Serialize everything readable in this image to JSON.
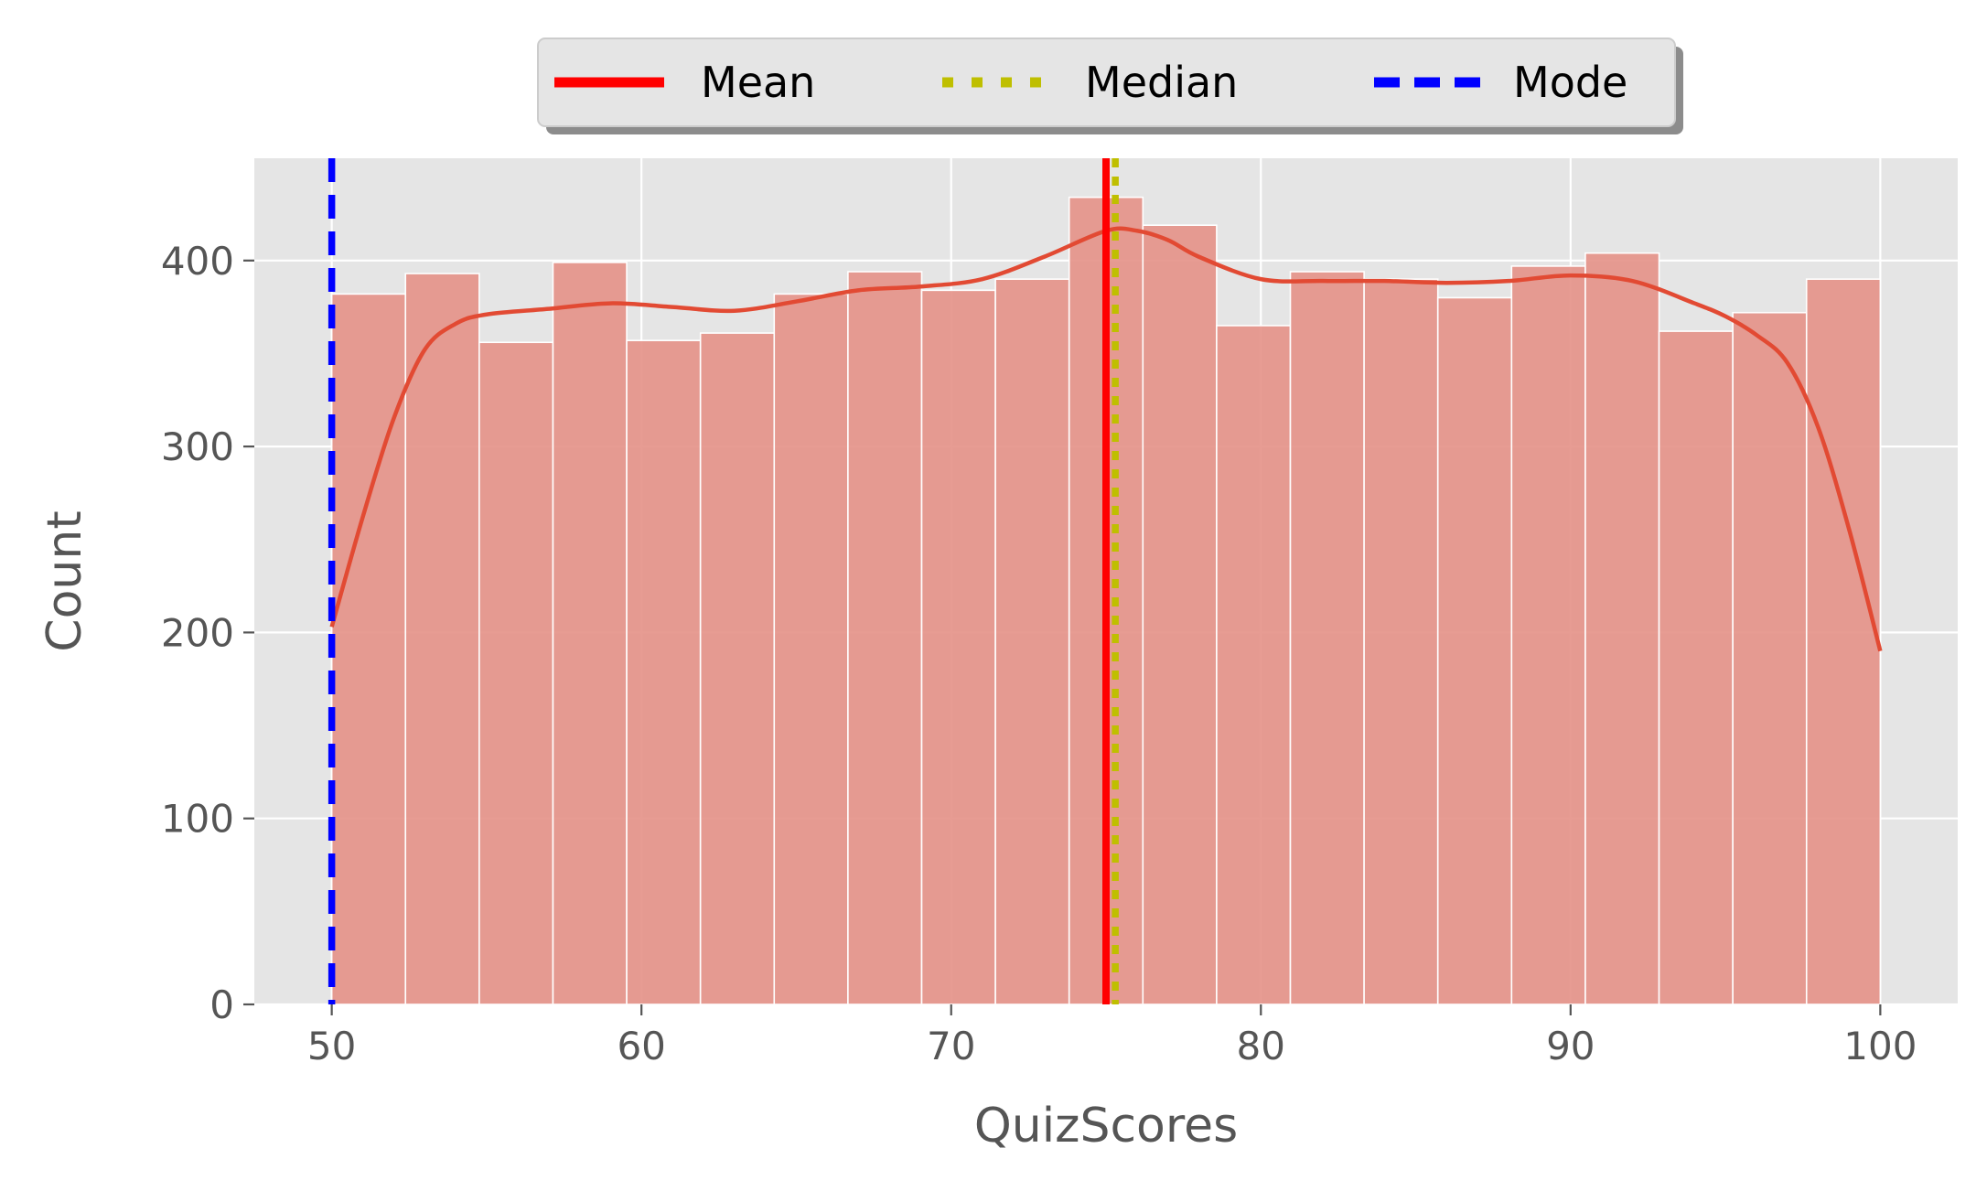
{
  "chart_data": {
    "type": "histogram",
    "xlabel": "QuizScores",
    "ylabel": "Count",
    "xlim": [
      47.5,
      102.5
    ],
    "ylim": [
      0,
      455
    ],
    "xticks": [
      50,
      60,
      70,
      80,
      90,
      100
    ],
    "yticks": [
      0,
      100,
      200,
      300,
      400
    ],
    "grid": true,
    "bin_edges": [
      50,
      52.381,
      54.762,
      57.143,
      59.524,
      61.905,
      64.286,
      66.667,
      69.048,
      71.429,
      73.81,
      76.19,
      78.571,
      80.952,
      83.333,
      85.714,
      88.095,
      90.476,
      92.857,
      95.238,
      97.619,
      100
    ],
    "counts": [
      382,
      393,
      356,
      399,
      357,
      361,
      382,
      394,
      384,
      390,
      434,
      419,
      365,
      394,
      390,
      380,
      397,
      404,
      362,
      372,
      390
    ],
    "kde": {
      "x": [
        50,
        51,
        52,
        53,
        54,
        55,
        57,
        59,
        61,
        63,
        65,
        67,
        69,
        71,
        73,
        75,
        76,
        77,
        78,
        80,
        82,
        84,
        86,
        88,
        90,
        92,
        94,
        95,
        96,
        97,
        98,
        99,
        100
      ],
      "y": [
        203,
        262,
        315,
        352,
        366,
        371,
        374,
        377,
        375,
        373,
        378,
        384,
        386,
        390,
        402,
        416,
        416,
        411,
        402,
        390,
        389,
        389,
        388,
        389,
        392,
        389,
        377,
        370,
        360,
        345,
        310,
        255,
        190
      ]
    },
    "reference_lines": [
      {
        "name": "Mean",
        "x": 75.0,
        "color": "#ff0000",
        "style": "solid"
      },
      {
        "name": "Median",
        "x": 75.3,
        "color": "#bfbf00",
        "style": "dotted"
      },
      {
        "name": "Mode",
        "x": 50.0,
        "color": "#0000ff",
        "style": "dashed"
      }
    ],
    "legend": {
      "placement": "top-center",
      "entries": [
        "Mean",
        "Median",
        "Mode"
      ]
    },
    "colors": {
      "bar_fill": "#e5948a",
      "kde_line": "#e24a33",
      "plot_background": "#e5e5e5",
      "grid": "#ffffff"
    }
  }
}
